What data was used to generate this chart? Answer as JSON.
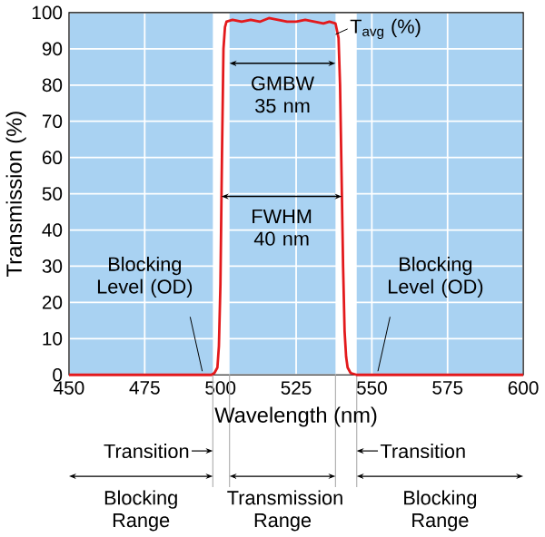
{
  "chart_data": {
    "type": "line",
    "xlabel": "Wavelength (nm)",
    "ylabel": "Transmission (%)",
    "x": [
      450,
      470,
      490,
      497,
      498,
      499,
      499.5,
      500,
      500.5,
      501,
      501.5,
      502,
      504,
      507,
      510,
      513,
      516,
      519,
      522,
      525,
      528,
      531,
      534,
      536,
      538,
      539,
      539.5,
      540,
      540.5,
      541,
      541.5,
      542,
      543,
      545,
      560,
      580,
      600
    ],
    "series": [
      {
        "color": "#e3191c",
        "values": [
          0,
          0,
          0,
          0,
          0.5,
          2,
          8,
          25,
          60,
          90,
          96,
          97.5,
          98,
          97.5,
          98,
          97.5,
          98.5,
          98,
          97.5,
          97.5,
          98,
          97.5,
          97,
          97.5,
          97,
          93,
          80,
          55,
          30,
          12,
          5,
          2,
          0.5,
          0,
          0,
          0,
          0
        ]
      }
    ],
    "xlim": [
      450,
      600
    ],
    "ylim": [
      0,
      100
    ],
    "xticks": [
      450,
      475,
      500,
      525,
      550,
      575,
      600
    ],
    "yticks": [
      0,
      10,
      20,
      30,
      40,
      50,
      60,
      70,
      80,
      90,
      100
    ],
    "grid": true,
    "bands": [
      {
        "axis": "x",
        "from": 450,
        "to": 497.5,
        "color": "#a9d2f2"
      },
      {
        "axis": "x",
        "from": 503,
        "to": 538,
        "color": "#a9d2f2"
      },
      {
        "axis": "x",
        "from": 545,
        "to": 600,
        "color": "#a9d2f2"
      }
    ],
    "annotations": [
      {
        "text": "T$_{avg}$ (%)",
        "x": 538,
        "y": 94
      },
      "GMBW 35 nm",
      "FWHM 40 nm",
      {
        "text": "Blocking Level (OD)",
        "x": 494,
        "y": 0
      },
      {
        "text": "Blocking Level (OD)",
        "x": 552,
        "y": 0
      },
      "Transition",
      "Transition",
      "Blocking Range",
      "Transmission Range",
      "Blocking Range"
    ]
  }
}
